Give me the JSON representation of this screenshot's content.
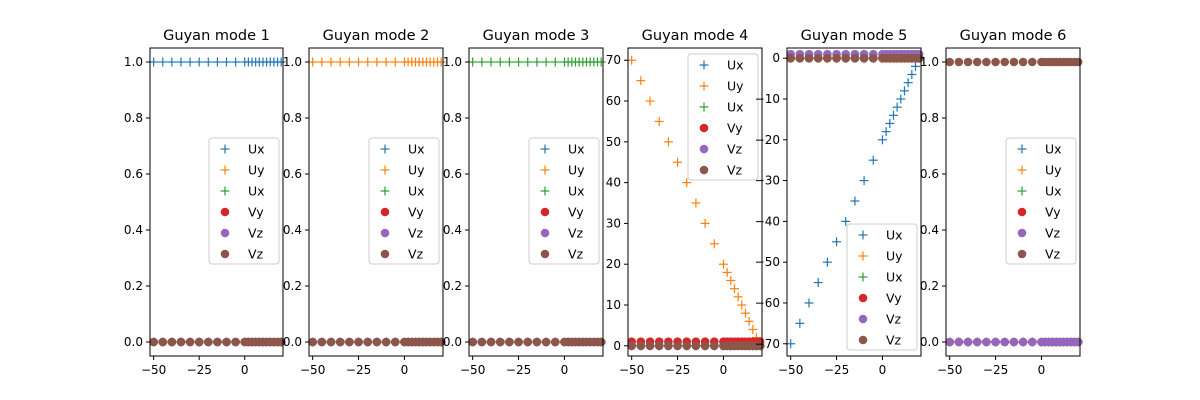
{
  "colors": {
    "Ux": "#1f77b4",
    "Uy": "#ff7f0e",
    "Ux2": "#2ca02c",
    "Vy": "#d62728",
    "Vz": "#9467bd",
    "Vz2": "#8c564b"
  },
  "chart_data": [
    {
      "type": "scatter",
      "title": "Guyan mode 1",
      "xlabel": "",
      "ylabel": "",
      "xlim": [
        -52,
        21
      ],
      "ylim": [
        -0.05,
        1.05
      ],
      "xticks": [
        -50,
        -25,
        0
      ],
      "xtick_labels": [
        "−50",
        "−25",
        "0"
      ],
      "yticks": [
        0,
        0.2,
        0.4,
        0.6,
        0.8,
        1.0
      ],
      "ytick_labels": [
        "0.0",
        "0.2",
        "0.4",
        "0.6",
        "0.8",
        "1.0"
      ],
      "legend": {
        "placement": "center-right",
        "entries": [
          "Ux",
          "Uy",
          "Ux",
          "Vy",
          "Vz",
          "Vz"
        ]
      },
      "series": [
        {
          "name": "Ux",
          "marker": "plus",
          "color_key": "Ux",
          "y": {
            "const": 1
          }
        },
        {
          "name": "Uy",
          "marker": "plus",
          "color_key": "Uy",
          "y": {
            "const": 0
          }
        },
        {
          "name": "Ux",
          "marker": "plus",
          "color_key": "Ux2",
          "y": {
            "const": 0
          }
        },
        {
          "name": "Vy",
          "marker": "circle",
          "color_key": "Vy",
          "y": {
            "const": 0
          }
        },
        {
          "name": "Vz",
          "marker": "circle",
          "color_key": "Vz",
          "y": {
            "const": 0
          }
        },
        {
          "name": "Vz",
          "marker": "circle",
          "color_key": "Vz2",
          "y": {
            "const": 0
          }
        }
      ]
    },
    {
      "type": "scatter",
      "title": "Guyan mode 2",
      "xlabel": "",
      "ylabel": "",
      "xlim": [
        -52,
        21
      ],
      "ylim": [
        -0.05,
        1.05
      ],
      "xticks": [
        -50,
        -25,
        0
      ],
      "xtick_labels": [
        "−50",
        "−25",
        "0"
      ],
      "yticks": [
        0,
        0.2,
        0.4,
        0.6,
        0.8,
        1.0
      ],
      "ytick_labels": [
        "0.0",
        "0.2",
        "0.4",
        "0.6",
        "0.8",
        "1.0"
      ],
      "legend": {
        "placement": "center-right",
        "entries": [
          "Ux",
          "Uy",
          "Ux",
          "Vy",
          "Vz",
          "Vz"
        ]
      },
      "series": [
        {
          "name": "Ux",
          "marker": "plus",
          "color_key": "Ux",
          "y": {
            "const": 0
          }
        },
        {
          "name": "Uy",
          "marker": "plus",
          "color_key": "Uy",
          "y": {
            "const": 1
          }
        },
        {
          "name": "Ux",
          "marker": "plus",
          "color_key": "Ux2",
          "y": {
            "const": 0
          }
        },
        {
          "name": "Vy",
          "marker": "circle",
          "color_key": "Vy",
          "y": {
            "const": 0
          }
        },
        {
          "name": "Vz",
          "marker": "circle",
          "color_key": "Vz",
          "y": {
            "const": 0
          }
        },
        {
          "name": "Vz",
          "marker": "circle",
          "color_key": "Vz2",
          "y": {
            "const": 0
          }
        }
      ]
    },
    {
      "type": "scatter",
      "title": "Guyan mode 3",
      "xlabel": "",
      "ylabel": "",
      "xlim": [
        -52,
        21
      ],
      "ylim": [
        -0.05,
        1.05
      ],
      "xticks": [
        -50,
        -25,
        0
      ],
      "xtick_labels": [
        "−50",
        "−25",
        "0"
      ],
      "yticks": [
        0,
        0.2,
        0.4,
        0.6,
        0.8,
        1.0
      ],
      "ytick_labels": [
        "0.0",
        "0.2",
        "0.4",
        "0.6",
        "0.8",
        "1.0"
      ],
      "legend": {
        "placement": "center-right",
        "entries": [
          "Ux",
          "Uy",
          "Ux",
          "Vy",
          "Vz",
          "Vz"
        ]
      },
      "series": [
        {
          "name": "Ux",
          "marker": "plus",
          "color_key": "Ux",
          "y": {
            "const": 0
          }
        },
        {
          "name": "Uy",
          "marker": "plus",
          "color_key": "Uy",
          "y": {
            "const": 0
          }
        },
        {
          "name": "Ux",
          "marker": "plus",
          "color_key": "Ux2",
          "y": {
            "const": 1
          }
        },
        {
          "name": "Vy",
          "marker": "circle",
          "color_key": "Vy",
          "y": {
            "const": 0
          }
        },
        {
          "name": "Vz",
          "marker": "circle",
          "color_key": "Vz",
          "y": {
            "const": 0
          }
        },
        {
          "name": "Vz",
          "marker": "circle",
          "color_key": "Vz2",
          "y": {
            "const": 0
          }
        }
      ]
    },
    {
      "type": "scatter",
      "title": "Guyan mode 4",
      "xlabel": "",
      "ylabel": "",
      "xlim": [
        -52,
        21
      ],
      "ylim": [
        -2.5,
        73
      ],
      "xticks": [
        -50,
        -25,
        0
      ],
      "xtick_labels": [
        "−50",
        "−25",
        "0"
      ],
      "yticks": [
        0,
        10,
        20,
        30,
        40,
        50,
        60,
        70
      ],
      "ytick_labels": [
        "0",
        "10",
        "20",
        "30",
        "40",
        "50",
        "60",
        "70"
      ],
      "legend": {
        "placement": "upper-right",
        "entries": [
          "Ux",
          "Uy",
          "Ux",
          "Vy",
          "Vz",
          "Vz"
        ]
      },
      "series": [
        {
          "name": "Ux",
          "marker": "plus",
          "color_key": "Ux",
          "y": {
            "const": 0
          }
        },
        {
          "name": "Uy",
          "marker": "plus",
          "color_key": "Uy",
          "y": {
            "slope": -1,
            "intercept": 20
          }
        },
        {
          "name": "Ux",
          "marker": "plus",
          "color_key": "Ux2",
          "y": {
            "const": 0
          }
        },
        {
          "name": "Vy",
          "marker": "circle",
          "color_key": "Vy",
          "y": {
            "const": 1
          }
        },
        {
          "name": "Vz",
          "marker": "circle",
          "color_key": "Vz",
          "y": {
            "const": 0
          }
        },
        {
          "name": "Vz",
          "marker": "circle",
          "color_key": "Vz2",
          "y": {
            "const": 0
          }
        }
      ]
    },
    {
      "type": "scatter",
      "title": "Guyan mode 5",
      "xlabel": "",
      "ylabel": "",
      "xlim": [
        -52,
        21
      ],
      "ylim": [
        -73,
        2.5
      ],
      "xticks": [
        -50,
        -25,
        0
      ],
      "xtick_labels": [
        "−50",
        "−25",
        "0"
      ],
      "yticks": [
        0,
        -10,
        -20,
        -30,
        -40,
        -50,
        -60,
        -70
      ],
      "ytick_labels": [
        "0",
        "−10",
        "−20",
        "−30",
        "−40",
        "−50",
        "−60",
        "−70"
      ],
      "legend": {
        "placement": "lower-right",
        "entries": [
          "Ux",
          "Uy",
          "Ux",
          "Vy",
          "Vz",
          "Vz"
        ]
      },
      "series": [
        {
          "name": "Ux",
          "marker": "plus",
          "color_key": "Ux",
          "y": {
            "slope": 1,
            "intercept": -20
          }
        },
        {
          "name": "Uy",
          "marker": "plus",
          "color_key": "Uy",
          "y": {
            "const": 0
          }
        },
        {
          "name": "Ux",
          "marker": "plus",
          "color_key": "Ux2",
          "y": {
            "const": 0
          }
        },
        {
          "name": "Vy",
          "marker": "circle",
          "color_key": "Vy",
          "y": {
            "const": 0
          }
        },
        {
          "name": "Vz",
          "marker": "circle",
          "color_key": "Vz",
          "y": {
            "const": 1
          }
        },
        {
          "name": "Vz",
          "marker": "circle",
          "color_key": "Vz2",
          "y": {
            "const": 0
          }
        }
      ]
    },
    {
      "type": "scatter",
      "title": "Guyan mode 6",
      "xlabel": "",
      "ylabel": "",
      "xlim": [
        -52,
        21
      ],
      "ylim": [
        -0.05,
        1.05
      ],
      "xticks": [
        -50,
        -25,
        0
      ],
      "xtick_labels": [
        "−50",
        "−25",
        "0"
      ],
      "yticks": [
        0,
        0.2,
        0.4,
        0.6,
        0.8,
        1.0
      ],
      "ytick_labels": [
        "0.0",
        "0.2",
        "0.4",
        "0.6",
        "0.8",
        "1.0"
      ],
      "legend": {
        "placement": "center-right",
        "entries": [
          "Ux",
          "Uy",
          "Ux",
          "Vy",
          "Vz",
          "Vz"
        ]
      },
      "series": [
        {
          "name": "Ux",
          "marker": "plus",
          "color_key": "Ux",
          "y": {
            "const": 0
          }
        },
        {
          "name": "Uy",
          "marker": "plus",
          "color_key": "Uy",
          "y": {
            "const": 0
          }
        },
        {
          "name": "Ux",
          "marker": "plus",
          "color_key": "Ux2",
          "y": {
            "const": 0
          }
        },
        {
          "name": "Vy",
          "marker": "circle",
          "color_key": "Vy",
          "y": {
            "const": 0
          }
        },
        {
          "name": "Vz",
          "marker": "circle",
          "color_key": "Vz",
          "y": {
            "const": 0
          }
        },
        {
          "name": "Vz",
          "marker": "circle",
          "color_key": "Vz2",
          "y": {
            "const": 1
          }
        }
      ]
    }
  ],
  "x_positions": [
    -50,
    -45,
    -40,
    -35,
    -30,
    -25,
    -20,
    -15,
    -10,
    -5,
    0,
    2,
    4,
    6,
    8,
    10,
    12,
    14,
    16,
    18,
    20
  ]
}
